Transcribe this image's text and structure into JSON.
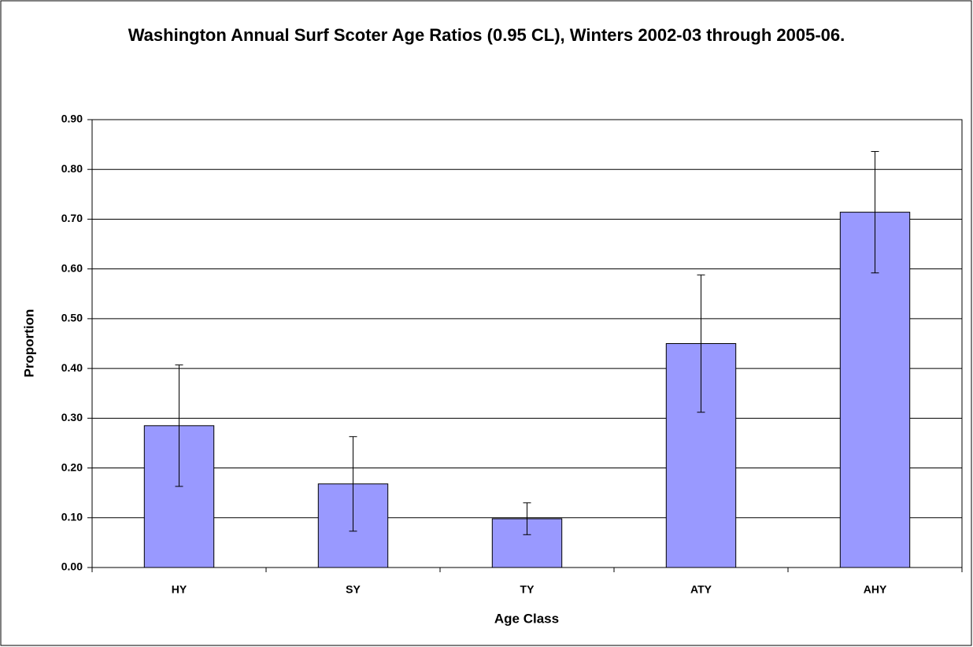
{
  "chart_data": {
    "type": "bar",
    "title": "Washington Annual Surf Scoter Age Ratios (0.95 CL), Winters 2002-03 through 2005-06.",
    "x_label": "Age Class",
    "y_label": "Proportion",
    "categories": [
      "HY",
      "SY",
      "TY",
      "ATY",
      "AHY"
    ],
    "values": [
      0.285,
      0.168,
      0.098,
      0.45,
      0.714
    ],
    "errors": [
      0.122,
      0.095,
      0.032,
      0.138,
      0.122
    ],
    "color": "#9999ff",
    "ylim": [
      0,
      0.9
    ],
    "yticks": [
      {
        "value": 0,
        "label": "0.00"
      },
      {
        "value": 0.1,
        "label": "0.10"
      },
      {
        "value": 0.2,
        "label": "0.20"
      },
      {
        "value": 0.3,
        "label": "0.30"
      },
      {
        "value": 0.4,
        "label": "0.40"
      },
      {
        "value": 0.5,
        "label": "0.50"
      },
      {
        "value": 0.6,
        "label": "0.60"
      },
      {
        "value": 0.7,
        "label": "0.70"
      },
      {
        "value": 0.8,
        "label": "0.80"
      },
      {
        "value": 0.9,
        "label": "0.90"
      }
    ],
    "grid": true
  }
}
